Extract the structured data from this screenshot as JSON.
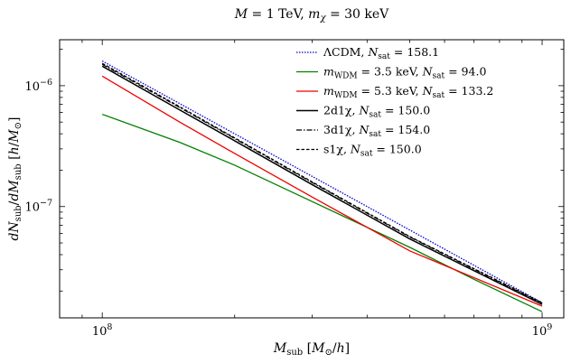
{
  "chart_data": {
    "type": "line",
    "title": "M = 1 TeV, m_χ = 30 keV",
    "xlabel": "M_sub [M⊙/h]",
    "ylabel": "dN_sub/dM_sub [h/M⊙]",
    "xscale": "log",
    "yscale": "log",
    "xlim": [
      80000000.0,
      1120000000.0
    ],
    "ylim": [
      1.2e-08,
      2.4e-06
    ],
    "x_ticks": [
      {
        "value": 100000000.0,
        "label_base": "10",
        "label_exp": "8"
      },
      {
        "value": 1000000000.0,
        "label_base": "10",
        "label_exp": "9"
      }
    ],
    "y_ticks": [
      {
        "value": 1e-07,
        "label_base": "10",
        "label_exp": "−7"
      },
      {
        "value": 1e-06,
        "label_base": "10",
        "label_exp": "−6"
      }
    ],
    "legend_position": "top-right",
    "series": [
      {
        "name": "ΛCDM, N_sat = 158.1",
        "legend_main": "ΛCDM, ",
        "legend_var": "N",
        "legend_sub": "sat",
        "legend_tail": " = 158.1",
        "legend_pre": "",
        "legend_mid": "",
        "color": "#0000cc",
        "dash": "1.5,1.5",
        "width": 1.3,
        "x": [
          100000000.0,
          1000000000.0
        ],
        "y": [
          1.6e-06,
          1.6e-08
        ]
      },
      {
        "name": "m_WDM = 3.5 keV, N_sat = 94.0",
        "legend_pre": "m",
        "legend_presub": "WDM",
        "legend_mid": " = 3.5 keV, ",
        "legend_var": "N",
        "legend_sub": "sat",
        "legend_tail": " = 94.0",
        "color": "#008000",
        "dash": "",
        "width": 1.3,
        "x": [
          100000000.0,
          150000000.0,
          200000000.0,
          300000000.0,
          500000000.0,
          700000000.0,
          1000000000.0
        ],
        "y": [
          5.8e-07,
          3.4e-07,
          2.2e-07,
          1.1e-07,
          4.6e-08,
          2.5e-08,
          1.35e-08
        ]
      },
      {
        "name": "m_WDM = 5.3 keV, N_sat = 133.2",
        "legend_pre": "m",
        "legend_presub": "WDM",
        "legend_mid": " = 5.3 keV, ",
        "legend_var": "N",
        "legend_sub": "sat",
        "legend_tail": " = 133.2",
        "color": "#ee0000",
        "dash": "",
        "width": 1.3,
        "x": [
          100000000.0,
          150000000.0,
          200000000.0,
          300000000.0,
          500000000.0,
          1000000000.0
        ],
        "y": [
          1.2e-06,
          5e-07,
          2.75e-07,
          1.2e-07,
          4.3e-08,
          1.5e-08
        ]
      },
      {
        "name": "2d1χ, N_sat = 150.0",
        "legend_main": "2d1χ, ",
        "legend_var": "N",
        "legend_sub": "sat",
        "legend_tail": " = 150.0",
        "legend_pre": "",
        "legend_mid": "",
        "color": "#000000",
        "dash": "",
        "width": 1.5,
        "x": [
          100000000.0,
          150000000.0,
          200000000.0,
          300000000.0,
          500000000.0,
          1000000000.0
        ],
        "y": [
          1.45e-06,
          6.3e-07,
          3.5e-07,
          1.52e-07,
          5.4e-08,
          1.55e-08
        ]
      },
      {
        "name": "3d1χ, N_sat = 154.0",
        "legend_main": "3d1χ, ",
        "legend_var": "N",
        "legend_sub": "sat",
        "legend_tail": " = 154.0",
        "legend_pre": "",
        "legend_mid": "",
        "color": "#000000",
        "dash": "6,2,1.5,2",
        "width": 1.2,
        "x": [
          100000000.0,
          150000000.0,
          200000000.0,
          300000000.0,
          500000000.0,
          1000000000.0
        ],
        "y": [
          1.5e-06,
          6.6e-07,
          3.65e-07,
          1.58e-07,
          5.6e-08,
          1.58e-08
        ]
      },
      {
        "name": "s1χ, N_sat = 150.0",
        "legend_main": "s1χ, ",
        "legend_var": "N",
        "legend_sub": "sat",
        "legend_tail": " = 150.0",
        "legend_pre": "",
        "legend_mid": "",
        "color": "#000000",
        "dash": "3.5,2",
        "width": 1.3,
        "x": [
          100000000.0,
          150000000.0,
          200000000.0,
          300000000.0,
          500000000.0,
          1000000000.0
        ],
        "y": [
          1.53e-06,
          6.7e-07,
          3.7e-07,
          1.6e-07,
          5.65e-08,
          1.6e-08
        ]
      }
    ]
  }
}
